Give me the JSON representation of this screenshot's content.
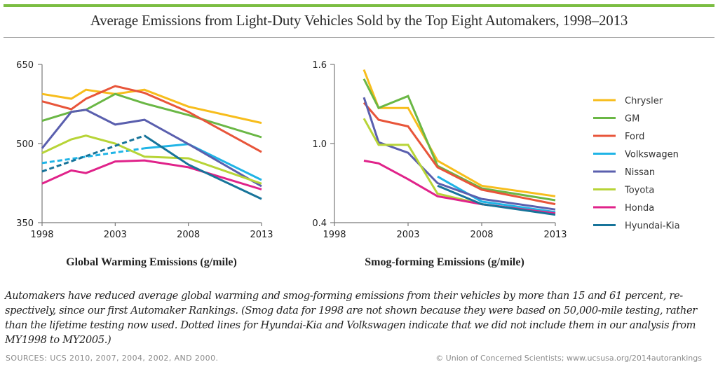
{
  "header": {
    "title": "Average Emissions from Light-Duty Vehicles Sold by the Top Eight Automakers, 1998–2013"
  },
  "chart_data": [
    {
      "type": "line",
      "title": "Global Warming Emissions (g/mile)",
      "xlabel": "Global Warming Emissions (g/mile)",
      "ylabel": "",
      "xlim": [
        1998,
        2013
      ],
      "ylim": [
        350,
        650
      ],
      "x_ticks": [
        1998,
        2003,
        2008,
        2013
      ],
      "y_ticks": [
        350,
        500,
        650
      ],
      "grid": false,
      "series": [
        {
          "name": "Chrysler",
          "color": "#f7bd1c",
          "x": [
            1998,
            2000,
            2001,
            2003,
            2005,
            2008,
            2013
          ],
          "values": [
            594,
            585,
            602,
            594,
            602,
            570,
            539
          ]
        },
        {
          "name": "GM",
          "color": "#6ab745",
          "x": [
            1998,
            2000,
            2001,
            2003,
            2005,
            2008,
            2013
          ],
          "values": [
            543,
            560,
            564,
            594,
            576,
            554,
            512
          ]
        },
        {
          "name": "Ford",
          "color": "#e8553a",
          "x": [
            1998,
            2000,
            2001,
            2003,
            2005,
            2008,
            2013
          ],
          "values": [
            580,
            565,
            585,
            609,
            596,
            560,
            484
          ]
        },
        {
          "name": "Volkswagen",
          "color": "#1fb4e6",
          "x": [
            2005,
            2008,
            2013
          ],
          "values": [
            491,
            499,
            431
          ],
          "dashed_x": [
            1998,
            2005
          ],
          "dashed_values": [
            463,
            491
          ]
        },
        {
          "name": "Nissan",
          "color": "#5a5fae",
          "x": [
            1998,
            2000,
            2001,
            2003,
            2005,
            2008,
            2013
          ],
          "values": [
            491,
            560,
            564,
            536,
            545,
            499,
            419
          ]
        },
        {
          "name": "Toyota",
          "color": "#b7d437",
          "x": [
            1998,
            2000,
            2001,
            2003,
            2005,
            2008,
            2013
          ],
          "values": [
            482,
            508,
            515,
            500,
            475,
            472,
            424
          ]
        },
        {
          "name": "Honda",
          "color": "#e0238a",
          "x": [
            1998,
            2000,
            2001,
            2003,
            2005,
            2008,
            2013
          ],
          "values": [
            424,
            449,
            444,
            466,
            468,
            455,
            413
          ]
        },
        {
          "name": "Hyundai-Kia",
          "color": "#17749a",
          "x": [
            2005,
            2008,
            2013
          ],
          "values": [
            515,
            460,
            395
          ],
          "dashed_x": [
            1998,
            2005
          ],
          "dashed_values": [
            447,
            515
          ]
        }
      ]
    },
    {
      "type": "line",
      "title": "Smog-forming Emissions (g/mile)",
      "xlabel": "Smog-forming Emissions (g/mile)",
      "ylabel": "",
      "xlim": [
        1998,
        2013
      ],
      "ylim": [
        0.4,
        1.6
      ],
      "x_ticks": [
        1998,
        2003,
        2008,
        2013
      ],
      "y_ticks": [
        0.4,
        1.0,
        1.6
      ],
      "y_tick_labels": [
        "0.4",
        "1.0",
        "1.6"
      ],
      "grid": false,
      "legend": "right",
      "series": [
        {
          "name": "Chrysler",
          "color": "#f7bd1c",
          "x": [
            2000,
            2001,
            2003,
            2005,
            2008,
            2013
          ],
          "values": [
            1.56,
            1.27,
            1.27,
            0.87,
            0.68,
            0.6
          ]
        },
        {
          "name": "GM",
          "color": "#6ab745",
          "x": [
            2000,
            2001,
            2003,
            2005,
            2008,
            2013
          ],
          "values": [
            1.49,
            1.27,
            1.36,
            0.83,
            0.66,
            0.57
          ]
        },
        {
          "name": "Ford",
          "color": "#e8553a",
          "x": [
            2000,
            2001,
            2003,
            2005,
            2008,
            2013
          ],
          "values": [
            1.31,
            1.18,
            1.13,
            0.82,
            0.65,
            0.54
          ]
        },
        {
          "name": "Volkswagen",
          "color": "#1fb4e6",
          "x": [
            2005,
            2008,
            2013
          ],
          "values": [
            0.75,
            0.56,
            0.48
          ]
        },
        {
          "name": "Nissan",
          "color": "#5a5fae",
          "x": [
            2000,
            2001,
            2003,
            2005,
            2008,
            2013
          ],
          "values": [
            1.35,
            1.01,
            0.93,
            0.7,
            0.58,
            0.5
          ]
        },
        {
          "name": "Toyota",
          "color": "#b7d437",
          "x": [
            2000,
            2001,
            2003,
            2005,
            2008,
            2013
          ],
          "values": [
            1.19,
            0.99,
            0.99,
            0.62,
            0.54,
            0.47
          ]
        },
        {
          "name": "Honda",
          "color": "#e0238a",
          "x": [
            2000,
            2001,
            2003,
            2005,
            2008,
            2013
          ],
          "values": [
            0.87,
            0.85,
            0.73,
            0.6,
            0.54,
            0.47
          ]
        },
        {
          "name": "Hyundai-Kia",
          "color": "#17749a",
          "x": [
            2005,
            2008,
            2013
          ],
          "values": [
            0.68,
            0.54,
            0.46
          ]
        }
      ]
    }
  ],
  "legend": [
    {
      "name": "Chrysler",
      "color": "#f7bd1c"
    },
    {
      "name": "GM",
      "color": "#6ab745"
    },
    {
      "name": "Ford",
      "color": "#e8553a"
    },
    {
      "name": "Volkswagen",
      "color": "#1fb4e6"
    },
    {
      "name": "Nissan",
      "color": "#5a5fae"
    },
    {
      "name": "Toyota",
      "color": "#b7d437"
    },
    {
      "name": "Honda",
      "color": "#e0238a"
    },
    {
      "name": "Hyundai-Kia",
      "color": "#17749a"
    }
  ],
  "caption": "Automakers have reduced average global warming and smog-forming emissions from their vehicles by more than 15 and 61 percent, re-spectively, since our first Automaker Rankings. (Smog data for 1998 are not shown because they were based on 50,000-mile testing, rather than the lifetime testing now used. Dotted lines for Hyundai-Kia and Volkswagen indicate that we did not include them in our analysis from MY1998 to MY2005.)",
  "caption_lines": [
    "Automakers have reduced average global warming and smog-forming emissions from their vehicles by more than 15 and 61 percent, re-",
    "spectively, since our first Automaker Rankings. (Smog data for 1998 are not shown because they were based on 50,000-mile testing, rather",
    "than the lifetime testing now used. Dotted lines for Hyundai-Kia and Volkswagen indicate that we did not include them in our analysis from",
    "MY1998 to MY2005.)"
  ],
  "sources": "SOURCES: UCS 2010, 2007, 2004, 2002, AND 2000.",
  "credit": "© Union of Concerned Scientists; www.ucsusa.org/2014autorankings",
  "style": {
    "accent_bar": "#7bbd42",
    "axis_color": "#7a7a7a"
  }
}
